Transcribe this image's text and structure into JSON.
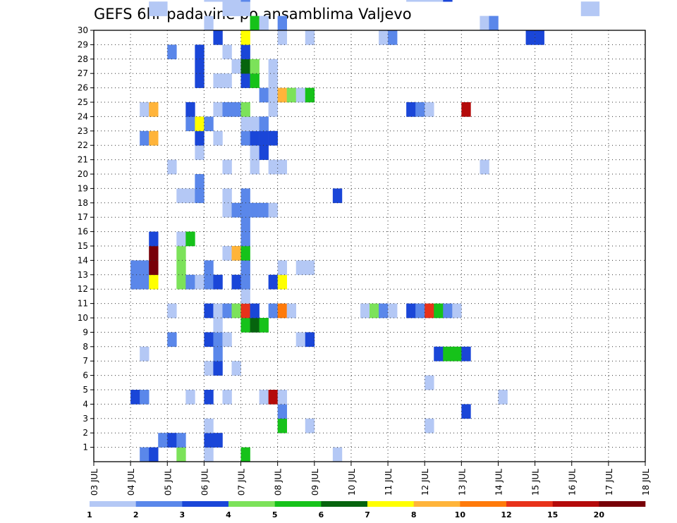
{
  "chart_data": {
    "type": "heatmap",
    "title": "GEFS 6hr padavine po ansamblima Valjevo",
    "x_ticks": [
      "03 JUL",
      "04 JUL",
      "05 JUL",
      "06 JUL",
      "07 JUL",
      "08 JUL",
      "09 JUL",
      "10 JUL",
      "11 JUL",
      "12 JUL",
      "13 JUL",
      "14 JUL",
      "15 JUL",
      "16 JUL",
      "17 JUL",
      "18 JUL"
    ],
    "y_ticks": [
      "1",
      "2",
      "3",
      "4",
      "5",
      "6",
      "7",
      "8",
      "9",
      "10",
      "11",
      "12",
      "13",
      "14",
      "15",
      "16",
      "17",
      "18",
      "19",
      "20",
      "21",
      "22",
      "23",
      "24",
      "25",
      "26",
      "27",
      "28",
      "29",
      "30"
    ],
    "xlim": [
      "03 JUL",
      "18 JUL"
    ],
    "ylim": [
      0,
      30
    ],
    "grid": true,
    "legend": {
      "placement": "bottom",
      "labels": [
        "1",
        "2",
        "3",
        "4",
        "5",
        "6",
        "7",
        "8",
        "10",
        "12",
        "15",
        "20"
      ],
      "colors": [
        "#b4c8f5",
        "#5a87ea",
        "#1a46d8",
        "#7ce25a",
        "#16c21a",
        "#06640e",
        "#ffff00",
        "#ffb43a",
        "#ff7a0a",
        "#e8321a",
        "#b40a0a",
        "#780008"
      ]
    },
    "cells": [
      [
        5,
        0,
        2
      ],
      [
        6,
        0,
        3
      ],
      [
        9,
        0,
        4
      ],
      [
        12,
        0,
        1
      ],
      [
        16,
        0,
        5
      ],
      [
        26,
        0,
        1
      ],
      [
        84,
        0,
        3
      ],
      [
        85,
        0,
        3
      ],
      [
        86,
        0,
        3
      ],
      [
        87,
        0,
        3
      ],
      [
        88,
        0,
        4
      ],
      [
        7,
        1,
        2
      ],
      [
        8,
        1,
        3
      ],
      [
        9,
        1,
        2
      ],
      [
        12,
        1,
        3
      ],
      [
        13,
        1,
        3
      ],
      [
        74,
        1,
        3
      ],
      [
        75,
        1,
        2
      ],
      [
        76,
        1,
        1
      ],
      [
        77,
        1,
        1
      ],
      [
        12,
        2,
        1
      ],
      [
        20,
        2,
        5
      ],
      [
        23,
        2,
        1
      ],
      [
        36,
        2,
        1
      ],
      [
        20,
        3,
        2
      ],
      [
        40,
        3,
        3
      ],
      [
        4,
        4,
        3
      ],
      [
        5,
        4,
        2
      ],
      [
        10,
        4,
        1
      ],
      [
        12,
        4,
        3
      ],
      [
        14,
        4,
        1
      ],
      [
        18,
        4,
        1
      ],
      [
        19,
        4,
        11
      ],
      [
        20,
        4,
        1
      ],
      [
        44,
        4,
        1
      ],
      [
        78,
        4,
        1
      ],
      [
        95,
        4,
        1
      ],
      [
        36,
        5,
        1
      ],
      [
        73,
        5,
        1
      ],
      [
        74,
        5,
        2
      ],
      [
        12,
        6,
        1
      ],
      [
        13,
        6,
        3
      ],
      [
        15,
        6,
        1
      ],
      [
        91,
        6,
        2
      ],
      [
        5,
        7,
        1
      ],
      [
        13,
        7,
        2
      ],
      [
        37,
        7,
        3
      ],
      [
        38,
        7,
        5
      ],
      [
        39,
        7,
        5
      ],
      [
        40,
        7,
        3
      ],
      [
        8,
        8,
        2
      ],
      [
        12,
        8,
        3
      ],
      [
        13,
        8,
        2
      ],
      [
        14,
        8,
        1
      ],
      [
        22,
        8,
        1
      ],
      [
        23,
        8,
        3
      ],
      [
        83,
        8,
        2
      ],
      [
        13,
        9,
        1
      ],
      [
        16,
        9,
        5
      ],
      [
        17,
        9,
        6
      ],
      [
        18,
        9,
        5
      ],
      [
        8,
        10,
        1
      ],
      [
        12,
        10,
        3
      ],
      [
        13,
        10,
        1
      ],
      [
        14,
        10,
        2
      ],
      [
        15,
        10,
        4
      ],
      [
        16,
        10,
        10
      ],
      [
        17,
        10,
        3
      ],
      [
        19,
        10,
        2
      ],
      [
        20,
        10,
        9
      ],
      [
        21,
        10,
        1
      ],
      [
        29,
        10,
        1
      ],
      [
        30,
        10,
        4
      ],
      [
        31,
        10,
        2
      ],
      [
        32,
        10,
        1
      ],
      [
        34,
        10,
        3
      ],
      [
        35,
        10,
        2
      ],
      [
        36,
        10,
        10
      ],
      [
        37,
        10,
        5
      ],
      [
        38,
        10,
        2
      ],
      [
        39,
        10,
        1
      ],
      [
        16,
        11,
        1
      ],
      [
        4,
        12,
        2
      ],
      [
        5,
        12,
        2
      ],
      [
        6,
        12,
        7
      ],
      [
        9,
        12,
        4
      ],
      [
        10,
        12,
        2
      ],
      [
        11,
        12,
        1
      ],
      [
        12,
        12,
        2
      ],
      [
        13,
        12,
        3
      ],
      [
        15,
        12,
        3
      ],
      [
        16,
        12,
        2
      ],
      [
        19,
        12,
        3
      ],
      [
        20,
        12,
        7
      ],
      [
        4,
        13,
        2
      ],
      [
        5,
        13,
        2
      ],
      [
        6,
        13,
        12
      ],
      [
        9,
        13,
        4
      ],
      [
        12,
        13,
        2
      ],
      [
        16,
        13,
        2
      ],
      [
        20,
        13,
        1
      ],
      [
        22,
        13,
        1
      ],
      [
        23,
        13,
        1
      ],
      [
        95,
        13,
        2
      ],
      [
        6,
        14,
        12
      ],
      [
        9,
        14,
        4
      ],
      [
        14,
        14,
        1
      ],
      [
        15,
        14,
        8
      ],
      [
        16,
        14,
        5
      ],
      [
        74,
        14,
        2
      ],
      [
        6,
        15,
        3
      ],
      [
        9,
        15,
        1
      ],
      [
        10,
        15,
        5
      ],
      [
        16,
        15,
        2
      ],
      [
        96,
        15,
        2
      ],
      [
        16,
        16,
        2
      ],
      [
        14,
        17,
        1
      ],
      [
        15,
        17,
        2
      ],
      [
        16,
        17,
        2
      ],
      [
        17,
        17,
        2
      ],
      [
        18,
        17,
        2
      ],
      [
        19,
        17,
        1
      ],
      [
        9,
        18,
        1
      ],
      [
        10,
        18,
        1
      ],
      [
        11,
        18,
        2
      ],
      [
        14,
        18,
        1
      ],
      [
        16,
        18,
        2
      ],
      [
        26,
        18,
        3
      ],
      [
        11,
        19,
        2
      ],
      [
        90,
        19,
        9
      ],
      [
        91,
        19,
        2
      ],
      [
        8,
        20,
        1
      ],
      [
        14,
        20,
        1
      ],
      [
        17,
        20,
        1
      ],
      [
        19,
        20,
        1
      ],
      [
        20,
        20,
        1
      ],
      [
        42,
        20,
        1
      ],
      [
        11,
        21,
        1
      ],
      [
        17,
        21,
        1
      ],
      [
        18,
        21,
        3
      ],
      [
        73,
        21,
        1
      ],
      [
        74,
        21,
        1
      ],
      [
        80,
        21,
        2
      ],
      [
        5,
        22,
        2
      ],
      [
        6,
        22,
        8
      ],
      [
        11,
        22,
        3
      ],
      [
        13,
        22,
        1
      ],
      [
        16,
        22,
        2
      ],
      [
        17,
        22,
        3
      ],
      [
        18,
        22,
        3
      ],
      [
        19,
        22,
        3
      ],
      [
        10,
        23,
        2
      ],
      [
        11,
        23,
        7
      ],
      [
        12,
        23,
        2
      ],
      [
        16,
        23,
        1
      ],
      [
        17,
        23,
        1
      ],
      [
        18,
        23,
        2
      ],
      [
        5,
        24,
        1
      ],
      [
        6,
        24,
        8
      ],
      [
        10,
        24,
        3
      ],
      [
        13,
        24,
        1
      ],
      [
        14,
        24,
        2
      ],
      [
        15,
        24,
        2
      ],
      [
        16,
        24,
        4
      ],
      [
        19,
        24,
        1
      ],
      [
        34,
        24,
        3
      ],
      [
        35,
        24,
        2
      ],
      [
        36,
        24,
        1
      ],
      [
        40,
        24,
        11
      ],
      [
        83,
        24,
        2
      ],
      [
        91,
        24,
        4
      ],
      [
        95,
        24,
        1
      ],
      [
        18,
        25,
        2
      ],
      [
        19,
        25,
        1
      ],
      [
        20,
        25,
        8
      ],
      [
        21,
        25,
        4
      ],
      [
        22,
        25,
        1
      ],
      [
        23,
        25,
        5
      ],
      [
        11,
        26,
        3
      ],
      [
        13,
        26,
        1
      ],
      [
        14,
        26,
        1
      ],
      [
        16,
        26,
        3
      ],
      [
        17,
        26,
        5
      ],
      [
        19,
        26,
        1
      ],
      [
        71,
        26,
        1
      ],
      [
        81,
        26,
        3
      ],
      [
        11,
        27,
        3
      ],
      [
        15,
        27,
        1
      ],
      [
        16,
        27,
        6
      ],
      [
        17,
        27,
        4
      ],
      [
        19,
        27,
        1
      ],
      [
        72,
        27,
        1
      ],
      [
        81,
        27,
        3
      ],
      [
        8,
        28,
        2
      ],
      [
        11,
        28,
        3
      ],
      [
        14,
        28,
        1
      ],
      [
        16,
        28,
        3
      ],
      [
        75,
        28,
        1
      ],
      [
        76,
        28,
        2
      ],
      [
        91,
        28,
        2
      ],
      [
        95,
        28,
        1
      ],
      [
        13,
        29,
        3
      ],
      [
        16,
        29,
        7
      ],
      [
        20,
        29,
        1
      ],
      [
        23,
        29,
        1
      ],
      [
        31,
        29,
        1
      ],
      [
        32,
        29,
        2
      ],
      [
        47,
        29,
        3
      ],
      [
        48,
        29,
        3
      ],
      [
        95,
        29,
        1
      ],
      [
        96,
        29,
        1
      ],
      [
        12,
        30,
        1
      ],
      [
        17,
        30,
        5
      ],
      [
        18,
        30,
        1
      ],
      [
        20,
        30,
        2
      ],
      [
        42,
        30,
        1
      ],
      [
        43,
        30,
        2
      ],
      [
        64,
        30,
        1
      ],
      [
        65,
        30,
        1
      ],
      [
        66,
        30,
        3
      ],
      [
        67,
        30,
        3
      ],
      [
        6,
        31,
        1
      ],
      [
        7,
        31,
        1
      ],
      [
        14,
        31,
        1
      ],
      [
        15,
        31,
        1
      ],
      [
        16,
        31,
        1
      ],
      [
        53,
        31,
        1
      ],
      [
        54,
        31,
        1
      ],
      [
        12,
        32,
        1
      ],
      [
        13,
        32,
        1
      ],
      [
        14,
        32,
        1
      ],
      [
        15,
        32,
        1
      ],
      [
        16,
        32,
        2
      ],
      [
        34,
        32,
        1
      ],
      [
        35,
        32,
        1
      ],
      [
        36,
        32,
        1
      ],
      [
        37,
        32,
        1
      ],
      [
        38,
        32,
        3
      ],
      [
        76,
        32,
        1
      ],
      [
        5,
        33,
        1
      ],
      [
        6,
        33,
        5
      ],
      [
        13,
        33,
        1
      ],
      [
        14,
        33,
        1
      ],
      [
        15,
        33,
        1
      ],
      [
        16,
        33,
        2
      ],
      [
        37,
        33,
        1
      ],
      [
        91,
        33,
        11
      ],
      [
        92,
        33,
        10
      ],
      [
        10,
        34,
        4
      ],
      [
        11,
        34,
        1
      ],
      [
        12,
        34,
        2
      ],
      [
        13,
        34,
        3
      ],
      [
        14,
        34,
        3
      ],
      [
        37,
        34,
        5
      ],
      [
        48,
        34,
        1
      ],
      [
        49,
        34,
        1
      ],
      [
        93,
        34,
        1
      ],
      [
        95,
        34,
        2
      ],
      [
        96,
        34,
        2
      ]
    ]
  }
}
